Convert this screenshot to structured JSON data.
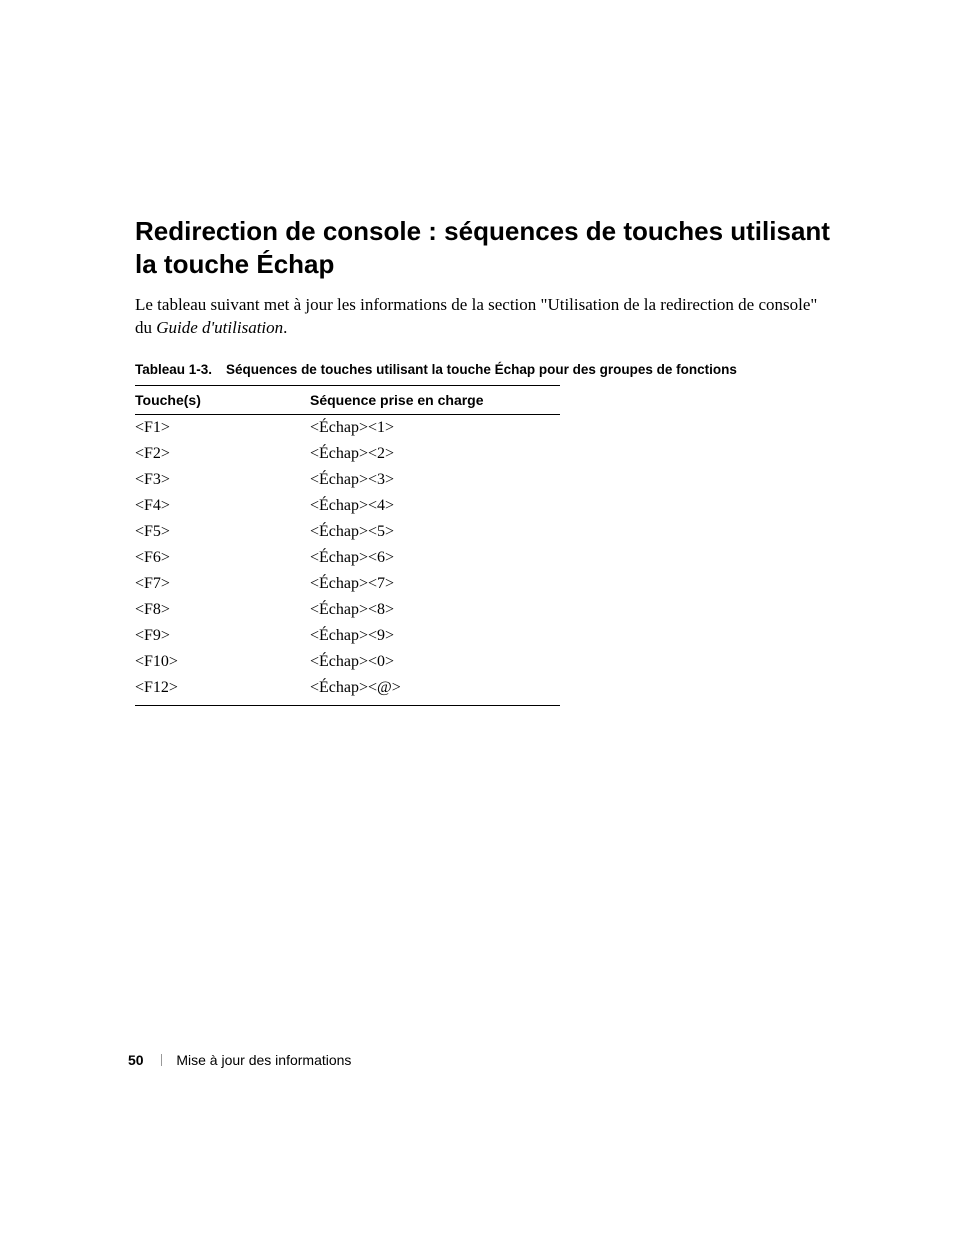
{
  "heading_line1": "Redirection de console : séquences de touches utilisant",
  "heading_line2": "la touche Échap",
  "intro_part1": "Le tableau suivant met à jour les informations de la section \"Utilisation de la redirection de console\" du ",
  "intro_italic": "Guide d'utilisation",
  "intro_part2": ".",
  "caption_label": "Tableau 1-3.",
  "caption_text": "Séquences de touches utilisant la touche Échap pour des groupes de fonctions",
  "table": {
    "col1": "Touche(s)",
    "col2": "Séquence prise en charge",
    "rows": [
      {
        "k": "<F1>",
        "s": "<Échap><1>"
      },
      {
        "k": "<F2>",
        "s": "<Échap><2>"
      },
      {
        "k": "<F3>",
        "s": "<Échap><3>"
      },
      {
        "k": "<F4>",
        "s": "<Échap><4>"
      },
      {
        "k": "<F5>",
        "s": "<Échap><5>"
      },
      {
        "k": "<F6>",
        "s": "<Échap><6>"
      },
      {
        "k": "<F7>",
        "s": "<Échap><7>"
      },
      {
        "k": "<F8>",
        "s": "<Échap><8>"
      },
      {
        "k": "<F9>",
        "s": "<Échap><9>"
      },
      {
        "k": "<F10>",
        "s": "<Échap><0>"
      },
      {
        "k": "<F12>",
        "s": "<Échap><@>"
      }
    ]
  },
  "footer": {
    "page_number": "50",
    "section": "Mise à jour des informations"
  }
}
